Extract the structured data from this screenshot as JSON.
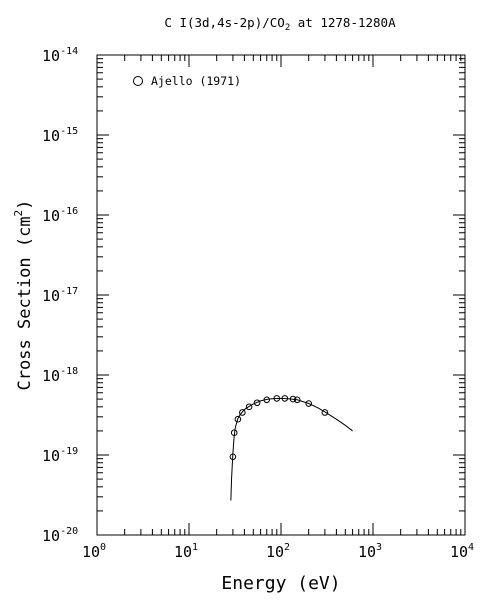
{
  "chart_data": {
    "type": "scatter",
    "title_parts": [
      "C I(3d,4s-2p)/CO",
      "2",
      " at 1278-1280A"
    ],
    "xlabel": "Energy (eV)",
    "ylabel": "Cross Section (cm",
    "ylabel_sup": "2",
    "ylabel_close": ")",
    "xscale": "log",
    "yscale": "log",
    "xlim": [
      1,
      10000
    ],
    "ylim": [
      1e-20,
      1e-14
    ],
    "x_ticks": [
      {
        "value": 1,
        "base": "10",
        "exp": "0"
      },
      {
        "value": 10,
        "base": "10",
        "exp": "1"
      },
      {
        "value": 100,
        "base": "10",
        "exp": "2"
      },
      {
        "value": 1000,
        "base": "10",
        "exp": "3"
      },
      {
        "value": 10000,
        "base": "10",
        "exp": "4"
      }
    ],
    "y_ticks": [
      {
        "value": 1e-20,
        "base": "10",
        "exp": "-20"
      },
      {
        "value": 1e-19,
        "base": "10",
        "exp": "-19"
      },
      {
        "value": 1e-18,
        "base": "10",
        "exp": "-18"
      },
      {
        "value": 1e-17,
        "base": "10",
        "exp": "-17"
      },
      {
        "value": 1e-16,
        "base": "10",
        "exp": "-16"
      },
      {
        "value": 1e-15,
        "base": "10",
        "exp": "-15"
      },
      {
        "value": 1e-14,
        "base": "10",
        "exp": "-14"
      }
    ],
    "legend_position": "top-left",
    "series": [
      {
        "name": "Ajello (1971)",
        "marker": "open-circle",
        "x": [
          30,
          31,
          34,
          38,
          45,
          55,
          70,
          90,
          110,
          135,
          150,
          200,
          300
        ],
        "y": [
          9.5e-20,
          1.9e-19,
          2.8e-19,
          3.4e-19,
          4e-19,
          4.5e-19,
          4.9e-19,
          5.1e-19,
          5.1e-19,
          5e-19,
          4.9e-19,
          4.4e-19,
          3.4e-19
        ]
      }
    ],
    "fit_curve": {
      "x": [
        28.5,
        29,
        29.5,
        30,
        31,
        32,
        34,
        36,
        40,
        45,
        50,
        60,
        70,
        80,
        100,
        120,
        150,
        200,
        250,
        300,
        400,
        500,
        600
      ],
      "y": [
        2.7e-20,
        5e-20,
        7.3e-20,
        1.05e-19,
        1.75e-19,
        2.25e-19,
        2.85e-19,
        3.2e-19,
        3.7e-19,
        4.05e-19,
        4.35e-19,
        4.75e-19,
        4.95e-19,
        5.05e-19,
        5.1e-19,
        5.05e-19,
        4.9e-19,
        4.4e-19,
        3.9e-19,
        3.45e-19,
        2.8e-19,
        2.35e-19,
        2e-19
      ]
    }
  }
}
